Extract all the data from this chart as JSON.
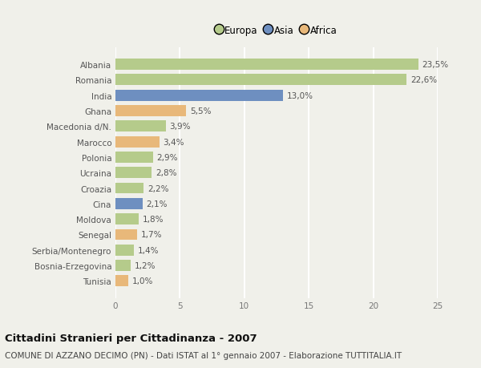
{
  "countries": [
    "Albania",
    "Romania",
    "India",
    "Ghana",
    "Macedonia d/N.",
    "Marocco",
    "Polonia",
    "Ucraina",
    "Croazia",
    "Cina",
    "Moldova",
    "Senegal",
    "Serbia/Montenegro",
    "Bosnia-Erzegovina",
    "Tunisia"
  ],
  "values": [
    23.5,
    22.6,
    13.0,
    5.5,
    3.9,
    3.4,
    2.9,
    2.8,
    2.2,
    2.1,
    1.8,
    1.7,
    1.4,
    1.2,
    1.0
  ],
  "continents": [
    "Europa",
    "Europa",
    "Asia",
    "Africa",
    "Europa",
    "Africa",
    "Europa",
    "Europa",
    "Europa",
    "Asia",
    "Europa",
    "Africa",
    "Europa",
    "Europa",
    "Africa"
  ],
  "labels": [
    "23,5%",
    "22,6%",
    "13,0%",
    "5,5%",
    "3,9%",
    "3,4%",
    "2,9%",
    "2,8%",
    "2,2%",
    "2,1%",
    "1,8%",
    "1,7%",
    "1,4%",
    "1,2%",
    "1,0%"
  ],
  "continent_colors": {
    "Europa": "#b5cb8b",
    "Asia": "#6e8fc0",
    "Africa": "#e8b87a"
  },
  "legend_labels": [
    "Europa",
    "Asia",
    "Africa"
  ],
  "legend_colors": [
    "#b5cb8b",
    "#6e8fc0",
    "#e8b87a"
  ],
  "xlim": [
    0,
    25
  ],
  "xticks": [
    0,
    5,
    10,
    15,
    20,
    25
  ],
  "title": "Cittadini Stranieri per Cittadinanza - 2007",
  "subtitle": "COMUNE DI AZZANO DECIMO (PN) - Dati ISTAT al 1° gennaio 2007 - Elaborazione TUTTITALIA.IT",
  "background_color": "#f0f0ea",
  "grid_color": "#ffffff",
  "bar_height": 0.72,
  "label_fontsize": 7.5,
  "tick_fontsize": 7.5,
  "title_fontsize": 9.5,
  "subtitle_fontsize": 7.5
}
